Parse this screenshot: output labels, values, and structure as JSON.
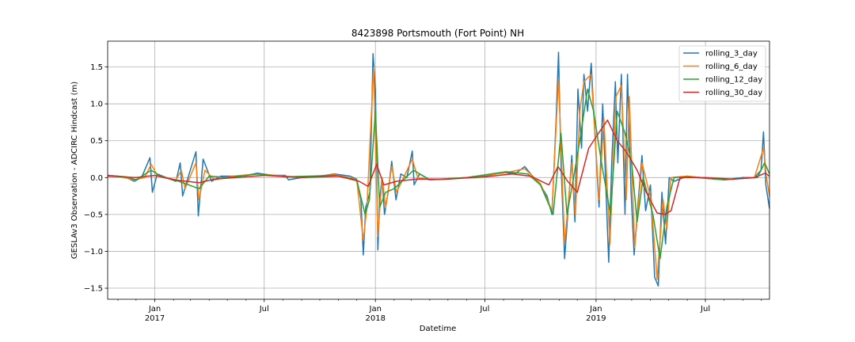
{
  "chart_data": {
    "type": "line",
    "title": "8423898 Portsmouth (Fort Point) NH",
    "xlabel": "Datetime",
    "ylabel": "GESLAv3 Observation - ADCIRC Hindcast (m)",
    "xlim": [
      "2016-10-15",
      "2019-10-15"
    ],
    "ylim": [
      -1.65,
      1.85
    ],
    "grid": true,
    "legend_position": "top-right",
    "y_ticks": [
      -1.5,
      -1.0,
      -0.5,
      0.0,
      0.5,
      1.0,
      1.5
    ],
    "y_tick_labels": [
      "−1.5",
      "−1.0",
      "−0.5",
      "0.0",
      "0.5",
      "1.0",
      "1.5"
    ],
    "x_major_ticks": [
      {
        "date": "2017-01-01",
        "label": "Jan",
        "year_label": "2017"
      },
      {
        "date": "2017-07-01",
        "label": "Jul",
        "year_label": ""
      },
      {
        "date": "2018-01-01",
        "label": "Jan",
        "year_label": "2018"
      },
      {
        "date": "2018-07-01",
        "label": "Jul",
        "year_label": ""
      },
      {
        "date": "2019-01-01",
        "label": "Jan",
        "year_label": "2019"
      },
      {
        "date": "2019-07-01",
        "label": "Jul",
        "year_label": ""
      }
    ],
    "series": [
      {
        "name": "rolling_3_day",
        "color": "#1f77b4",
        "points": [
          [
            "2016-10-15",
            0.03
          ],
          [
            "2016-11-01",
            0.02
          ],
          [
            "2016-11-15",
            0.0
          ],
          [
            "2016-11-28",
            -0.05
          ],
          [
            "2016-12-10",
            0.0
          ],
          [
            "2016-12-24",
            0.27
          ],
          [
            "2016-12-28",
            -0.2
          ],
          [
            "2017-01-05",
            0.05
          ],
          [
            "2017-01-20",
            0.0
          ],
          [
            "2017-02-05",
            -0.05
          ],
          [
            "2017-02-12",
            0.2
          ],
          [
            "2017-02-16",
            -0.25
          ],
          [
            "2017-02-25",
            0.0
          ],
          [
            "2017-03-10",
            0.35
          ],
          [
            "2017-03-14",
            -0.52
          ],
          [
            "2017-03-22",
            0.25
          ],
          [
            "2017-04-05",
            -0.05
          ],
          [
            "2017-04-20",
            0.02
          ],
          [
            "2017-05-10",
            0.02
          ],
          [
            "2017-06-01",
            0.03
          ],
          [
            "2017-06-20",
            0.06
          ],
          [
            "2017-07-15",
            0.03
          ],
          [
            "2017-08-05",
            0.03
          ],
          [
            "2017-08-10",
            -0.03
          ],
          [
            "2017-09-01",
            0.0
          ],
          [
            "2017-10-01",
            0.02
          ],
          [
            "2017-10-25",
            0.05
          ],
          [
            "2017-11-20",
            0.02
          ],
          [
            "2017-12-01",
            -0.02
          ],
          [
            "2017-12-08",
            -0.3
          ],
          [
            "2017-12-12",
            -1.05
          ],
          [
            "2017-12-16",
            -0.4
          ],
          [
            "2017-12-23",
            -0.2
          ],
          [
            "2017-12-28",
            1.68
          ],
          [
            "2018-01-01",
            1.2
          ],
          [
            "2018-01-05",
            -0.98
          ],
          [
            "2018-01-08",
            -0.3
          ],
          [
            "2018-01-12",
            0.0
          ],
          [
            "2018-01-16",
            -0.5
          ],
          [
            "2018-01-22",
            -0.2
          ],
          [
            "2018-01-28",
            0.22
          ],
          [
            "2018-02-04",
            -0.3
          ],
          [
            "2018-02-12",
            0.05
          ],
          [
            "2018-02-22",
            0.0
          ],
          [
            "2018-03-03",
            0.36
          ],
          [
            "2018-03-06",
            -0.1
          ],
          [
            "2018-03-15",
            0.05
          ],
          [
            "2018-04-01",
            -0.03
          ],
          [
            "2018-05-01",
            -0.02
          ],
          [
            "2018-06-01",
            0.0
          ],
          [
            "2018-07-01",
            0.02
          ],
          [
            "2018-08-01",
            0.07
          ],
          [
            "2018-08-20",
            0.05
          ],
          [
            "2018-09-05",
            0.15
          ],
          [
            "2018-09-15",
            0.05
          ],
          [
            "2018-10-01",
            -0.1
          ],
          [
            "2018-10-12",
            -0.25
          ],
          [
            "2018-10-20",
            -0.5
          ],
          [
            "2018-10-27",
            0.8
          ],
          [
            "2018-10-31",
            1.7
          ],
          [
            "2018-11-04",
            0.2
          ],
          [
            "2018-11-10",
            -1.1
          ],
          [
            "2018-11-16",
            -0.4
          ],
          [
            "2018-11-22",
            0.3
          ],
          [
            "2018-11-27",
            -0.6
          ],
          [
            "2018-12-02",
            1.2
          ],
          [
            "2018-12-08",
            0.4
          ],
          [
            "2018-12-12",
            1.4
          ],
          [
            "2018-12-18",
            0.9
          ],
          [
            "2018-12-24",
            1.55
          ],
          [
            "2018-12-30",
            0.6
          ],
          [
            "2019-01-06",
            -0.4
          ],
          [
            "2019-01-12",
            1.0
          ],
          [
            "2019-01-18",
            -0.3
          ],
          [
            "2019-01-22",
            -1.15
          ],
          [
            "2019-01-27",
            0.2
          ],
          [
            "2019-02-02",
            1.3
          ],
          [
            "2019-02-06",
            0.2
          ],
          [
            "2019-02-12",
            1.4
          ],
          [
            "2019-02-18",
            -0.5
          ],
          [
            "2019-02-22",
            1.4
          ],
          [
            "2019-02-28",
            -0.2
          ],
          [
            "2019-03-05",
            -1.05
          ],
          [
            "2019-03-12",
            -0.3
          ],
          [
            "2019-03-18",
            0.3
          ],
          [
            "2019-03-24",
            -0.45
          ],
          [
            "2019-04-01",
            -0.1
          ],
          [
            "2019-04-08",
            -1.35
          ],
          [
            "2019-04-14",
            -1.47
          ],
          [
            "2019-04-20",
            -0.2
          ],
          [
            "2019-04-26",
            -0.9
          ],
          [
            "2019-05-02",
            0.0
          ],
          [
            "2019-05-10",
            -0.05
          ],
          [
            "2019-06-01",
            0.02
          ],
          [
            "2019-07-01",
            -0.01
          ],
          [
            "2019-08-01",
            -0.03
          ],
          [
            "2019-09-01",
            0.0
          ],
          [
            "2019-09-20",
            0.0
          ],
          [
            "2019-10-01",
            0.1
          ],
          [
            "2019-10-05",
            0.62
          ],
          [
            "2019-10-09",
            -0.1
          ],
          [
            "2019-10-15",
            -0.42
          ]
        ]
      },
      {
        "name": "rolling_6_day",
        "color": "#ff7f0e",
        "points": [
          [
            "2016-10-15",
            0.03
          ],
          [
            "2016-11-01",
            0.02
          ],
          [
            "2016-11-28",
            -0.03
          ],
          [
            "2016-12-15",
            0.0
          ],
          [
            "2016-12-26",
            0.18
          ],
          [
            "2017-01-05",
            0.03
          ],
          [
            "2017-02-05",
            -0.03
          ],
          [
            "2017-02-14",
            0.1
          ],
          [
            "2017-02-20",
            -0.15
          ],
          [
            "2017-03-10",
            0.2
          ],
          [
            "2017-03-15",
            -0.3
          ],
          [
            "2017-03-25",
            0.1
          ],
          [
            "2017-04-10",
            -0.03
          ],
          [
            "2017-05-10",
            0.02
          ],
          [
            "2017-06-20",
            0.05
          ],
          [
            "2017-08-05",
            0.02
          ],
          [
            "2017-09-01",
            0.0
          ],
          [
            "2017-10-25",
            0.04
          ],
          [
            "2017-12-01",
            -0.02
          ],
          [
            "2017-12-12",
            -0.85
          ],
          [
            "2017-12-18",
            -0.4
          ],
          [
            "2017-12-29",
            1.5
          ],
          [
            "2018-01-05",
            -0.8
          ],
          [
            "2018-01-12",
            0.0
          ],
          [
            "2018-01-18",
            -0.4
          ],
          [
            "2018-01-28",
            0.15
          ],
          [
            "2018-02-05",
            -0.2
          ],
          [
            "2018-03-03",
            0.25
          ],
          [
            "2018-03-12",
            0.0
          ],
          [
            "2018-04-01",
            -0.03
          ],
          [
            "2018-06-01",
            0.0
          ],
          [
            "2018-08-01",
            0.06
          ],
          [
            "2018-09-05",
            0.12
          ],
          [
            "2018-10-01",
            -0.08
          ],
          [
            "2018-10-20",
            -0.45
          ],
          [
            "2018-10-31",
            1.35
          ],
          [
            "2018-11-10",
            -0.9
          ],
          [
            "2018-11-22",
            0.2
          ],
          [
            "2018-11-28",
            -0.5
          ],
          [
            "2018-12-05",
            0.9
          ],
          [
            "2018-12-12",
            1.3
          ],
          [
            "2018-12-24",
            1.4
          ],
          [
            "2019-01-06",
            -0.3
          ],
          [
            "2019-01-14",
            0.8
          ],
          [
            "2019-01-24",
            -0.9
          ],
          [
            "2019-02-03",
            1.1
          ],
          [
            "2019-02-12",
            1.25
          ],
          [
            "2019-02-20",
            -0.3
          ],
          [
            "2019-02-25",
            1.1
          ],
          [
            "2019-03-06",
            -0.95
          ],
          [
            "2019-03-18",
            0.2
          ],
          [
            "2019-04-02",
            -0.3
          ],
          [
            "2019-04-12",
            -1.38
          ],
          [
            "2019-04-22",
            -0.3
          ],
          [
            "2019-04-28",
            -0.7
          ],
          [
            "2019-05-05",
            0.0
          ],
          [
            "2019-06-01",
            0.02
          ],
          [
            "2019-08-01",
            -0.03
          ],
          [
            "2019-09-20",
            0.0
          ],
          [
            "2019-10-05",
            0.4
          ],
          [
            "2019-10-10",
            0.0
          ],
          [
            "2019-10-15",
            -0.25
          ]
        ]
      },
      {
        "name": "rolling_12_day",
        "color": "#2ca02c",
        "points": [
          [
            "2016-10-15",
            0.03
          ],
          [
            "2016-11-15",
            0.01
          ],
          [
            "2016-12-01",
            -0.03
          ],
          [
            "2016-12-26",
            0.1
          ],
          [
            "2017-01-10",
            0.02
          ],
          [
            "2017-02-10",
            -0.05
          ],
          [
            "2017-03-15",
            -0.15
          ],
          [
            "2017-04-01",
            0.02
          ],
          [
            "2017-05-01",
            0.0
          ],
          [
            "2017-06-20",
            0.05
          ],
          [
            "2017-08-05",
            0.01
          ],
          [
            "2017-10-25",
            0.03
          ],
          [
            "2017-12-01",
            -0.03
          ],
          [
            "2017-12-15",
            -0.5
          ],
          [
            "2017-12-22",
            -0.3
          ],
          [
            "2018-01-01",
            0.9
          ],
          [
            "2018-01-08",
            -0.4
          ],
          [
            "2018-01-18",
            -0.2
          ],
          [
            "2018-02-01",
            -0.15
          ],
          [
            "2018-03-05",
            0.1
          ],
          [
            "2018-04-01",
            -0.03
          ],
          [
            "2018-06-01",
            0.0
          ],
          [
            "2018-08-05",
            0.08
          ],
          [
            "2018-09-10",
            0.05
          ],
          [
            "2018-10-01",
            -0.1
          ],
          [
            "2018-10-22",
            -0.5
          ],
          [
            "2018-11-04",
            0.6
          ],
          [
            "2018-11-14",
            -0.5
          ],
          [
            "2018-11-25",
            0.0
          ],
          [
            "2018-12-05",
            0.5
          ],
          [
            "2018-12-18",
            1.2
          ],
          [
            "2018-12-28",
            0.9
          ],
          [
            "2019-01-10",
            0.2
          ],
          [
            "2019-01-25",
            -0.5
          ],
          [
            "2019-02-05",
            0.9
          ],
          [
            "2019-02-18",
            0.6
          ],
          [
            "2019-03-01",
            0.2
          ],
          [
            "2019-03-10",
            -0.6
          ],
          [
            "2019-03-20",
            0.0
          ],
          [
            "2019-04-05",
            -0.5
          ],
          [
            "2019-04-17",
            -1.1
          ],
          [
            "2019-04-28",
            -0.4
          ],
          [
            "2019-05-10",
            0.0
          ],
          [
            "2019-06-01",
            0.01
          ],
          [
            "2019-08-01",
            -0.03
          ],
          [
            "2019-09-25",
            0.0
          ],
          [
            "2019-10-07",
            0.2
          ],
          [
            "2019-10-15",
            0.05
          ]
        ]
      },
      {
        "name": "rolling_30_day",
        "color": "#d62728",
        "points": [
          [
            "2016-10-15",
            0.02
          ],
          [
            "2016-12-01",
            0.0
          ],
          [
            "2017-01-01",
            0.03
          ],
          [
            "2017-02-01",
            -0.03
          ],
          [
            "2017-03-15",
            -0.07
          ],
          [
            "2017-04-10",
            -0.02
          ],
          [
            "2017-05-15",
            0.0
          ],
          [
            "2017-07-01",
            0.03
          ],
          [
            "2017-09-01",
            0.0
          ],
          [
            "2017-11-01",
            0.02
          ],
          [
            "2017-12-05",
            -0.05
          ],
          [
            "2017-12-20",
            -0.12
          ],
          [
            "2018-01-03",
            0.18
          ],
          [
            "2018-01-15",
            -0.1
          ],
          [
            "2018-02-05",
            -0.05
          ],
          [
            "2018-03-10",
            -0.02
          ],
          [
            "2018-05-01",
            -0.02
          ],
          [
            "2018-07-01",
            0.01
          ],
          [
            "2018-08-15",
            0.05
          ],
          [
            "2018-09-15",
            0.02
          ],
          [
            "2018-10-15",
            -0.1
          ],
          [
            "2018-10-30",
            0.15
          ],
          [
            "2018-11-15",
            -0.05
          ],
          [
            "2018-12-01",
            -0.2
          ],
          [
            "2018-12-20",
            0.4
          ],
          [
            "2019-01-05",
            0.6
          ],
          [
            "2019-01-20",
            0.78
          ],
          [
            "2019-02-05",
            0.5
          ],
          [
            "2019-02-20",
            0.35
          ],
          [
            "2019-03-10",
            0.1
          ],
          [
            "2019-03-25",
            -0.2
          ],
          [
            "2019-04-12",
            -0.48
          ],
          [
            "2019-04-25",
            -0.5
          ],
          [
            "2019-05-05",
            -0.45
          ],
          [
            "2019-05-20",
            0.0
          ],
          [
            "2019-07-01",
            0.0
          ],
          [
            "2019-08-15",
            -0.02
          ],
          [
            "2019-09-20",
            0.0
          ],
          [
            "2019-10-08",
            0.06
          ],
          [
            "2019-10-15",
            0.02
          ]
        ]
      }
    ]
  }
}
